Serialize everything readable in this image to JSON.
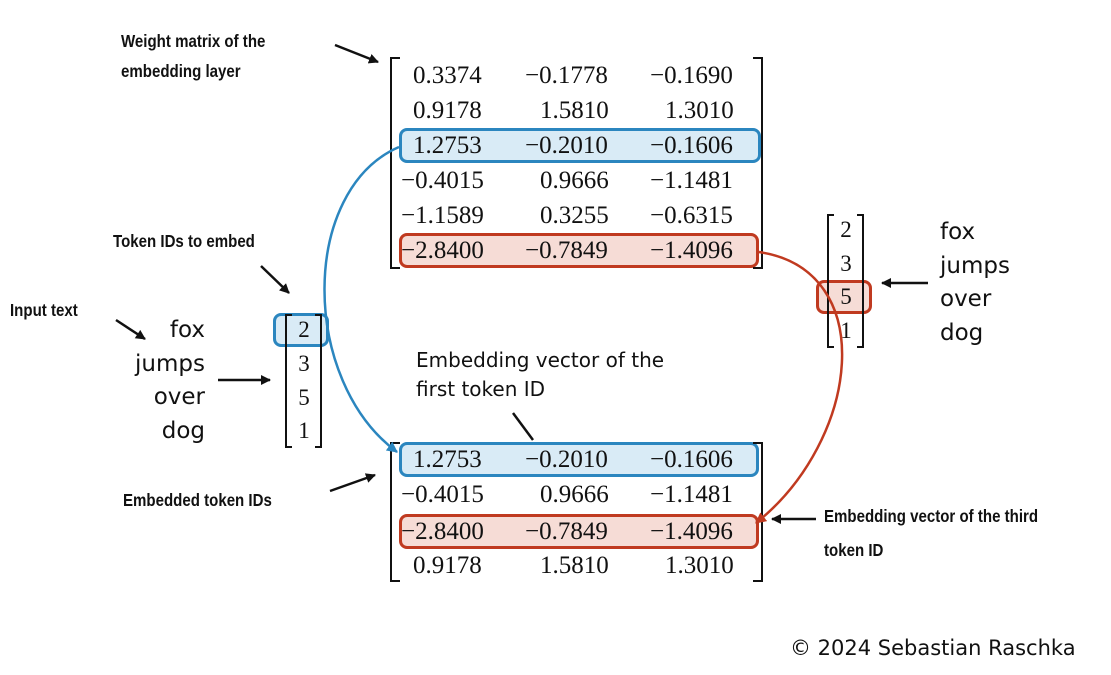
{
  "labels": {
    "weight_matrix_line1": "Weight matrix of the",
    "weight_matrix_line2": "embedding layer",
    "token_ids": "Token IDs to embed",
    "input_text": "Input text",
    "embedded_token_ids": "Embedded token IDs",
    "first_vector_line1": "Embedding vector of the",
    "first_vector_line2": "first token ID",
    "third_vector_line1": "Embedding vector of the third",
    "third_vector_line2": "token ID"
  },
  "input_words": [
    "fox",
    "jumps",
    "over",
    "dog"
  ],
  "token_ids": [
    "2",
    "3",
    "5",
    "1"
  ],
  "weight_matrix": [
    [
      "0.3374",
      "−0.1778",
      "−0.1690"
    ],
    [
      "0.9178",
      "1.5810",
      "1.3010"
    ],
    [
      "1.2753",
      "−0.2010",
      "−0.1606"
    ],
    [
      "−0.4015",
      "0.9666",
      "−1.1481"
    ],
    [
      "−1.1589",
      "0.3255",
      "−0.6315"
    ],
    [
      "−2.8400",
      "−0.7849",
      "−1.4096"
    ]
  ],
  "embedded_matrix": [
    [
      "1.2753",
      "−0.2010",
      "−0.1606"
    ],
    [
      "−0.4015",
      "0.9666",
      "−1.1481"
    ],
    [
      "−2.8400",
      "−0.7849",
      "−1.4096"
    ],
    [
      "0.9178",
      "1.5810",
      "1.3010"
    ]
  ],
  "highlight_colors": {
    "first_token": "#2b86bf",
    "first_token_fill": "#d9ebf6",
    "third_token": "#c03a20",
    "third_token_fill": "#f6dcd6"
  },
  "copyright": "© 2024 Sebastian Raschka"
}
